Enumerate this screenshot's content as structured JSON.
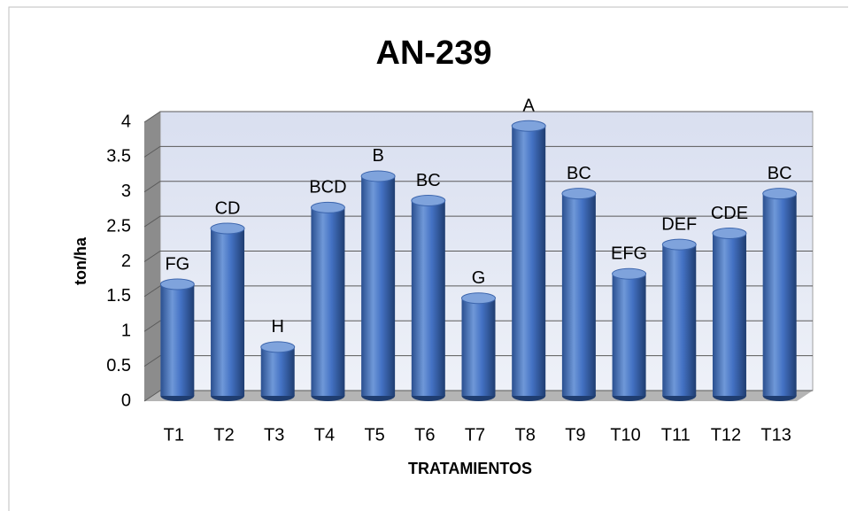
{
  "chart_data": {
    "type": "bar",
    "title": "AN-239",
    "categories": [
      "T1",
      "T2",
      "T3",
      "T4",
      "T5",
      "T6",
      "T7",
      "T8",
      "T9",
      "T10",
      "T11",
      "T12",
      "T13"
    ],
    "values": [
      1.6,
      2.4,
      0.7,
      2.7,
      3.15,
      2.8,
      1.4,
      3.87,
      2.9,
      1.75,
      2.17,
      2.33,
      2.9
    ],
    "annotations": [
      "FG",
      "CD",
      "H",
      "BCD",
      "B",
      "BC",
      "G",
      "A",
      "BC",
      "EFG",
      "DEF",
      "CDE",
      "BC"
    ],
    "color": "#4472c4",
    "xlabel": "TRATAMIENTOS",
    "ylabel": "ton/ha",
    "ylim": [
      0,
      4
    ],
    "yticks": [
      0,
      0.5,
      1,
      1.5,
      2,
      2.5,
      3,
      3.5,
      4
    ],
    "grid": true
  }
}
